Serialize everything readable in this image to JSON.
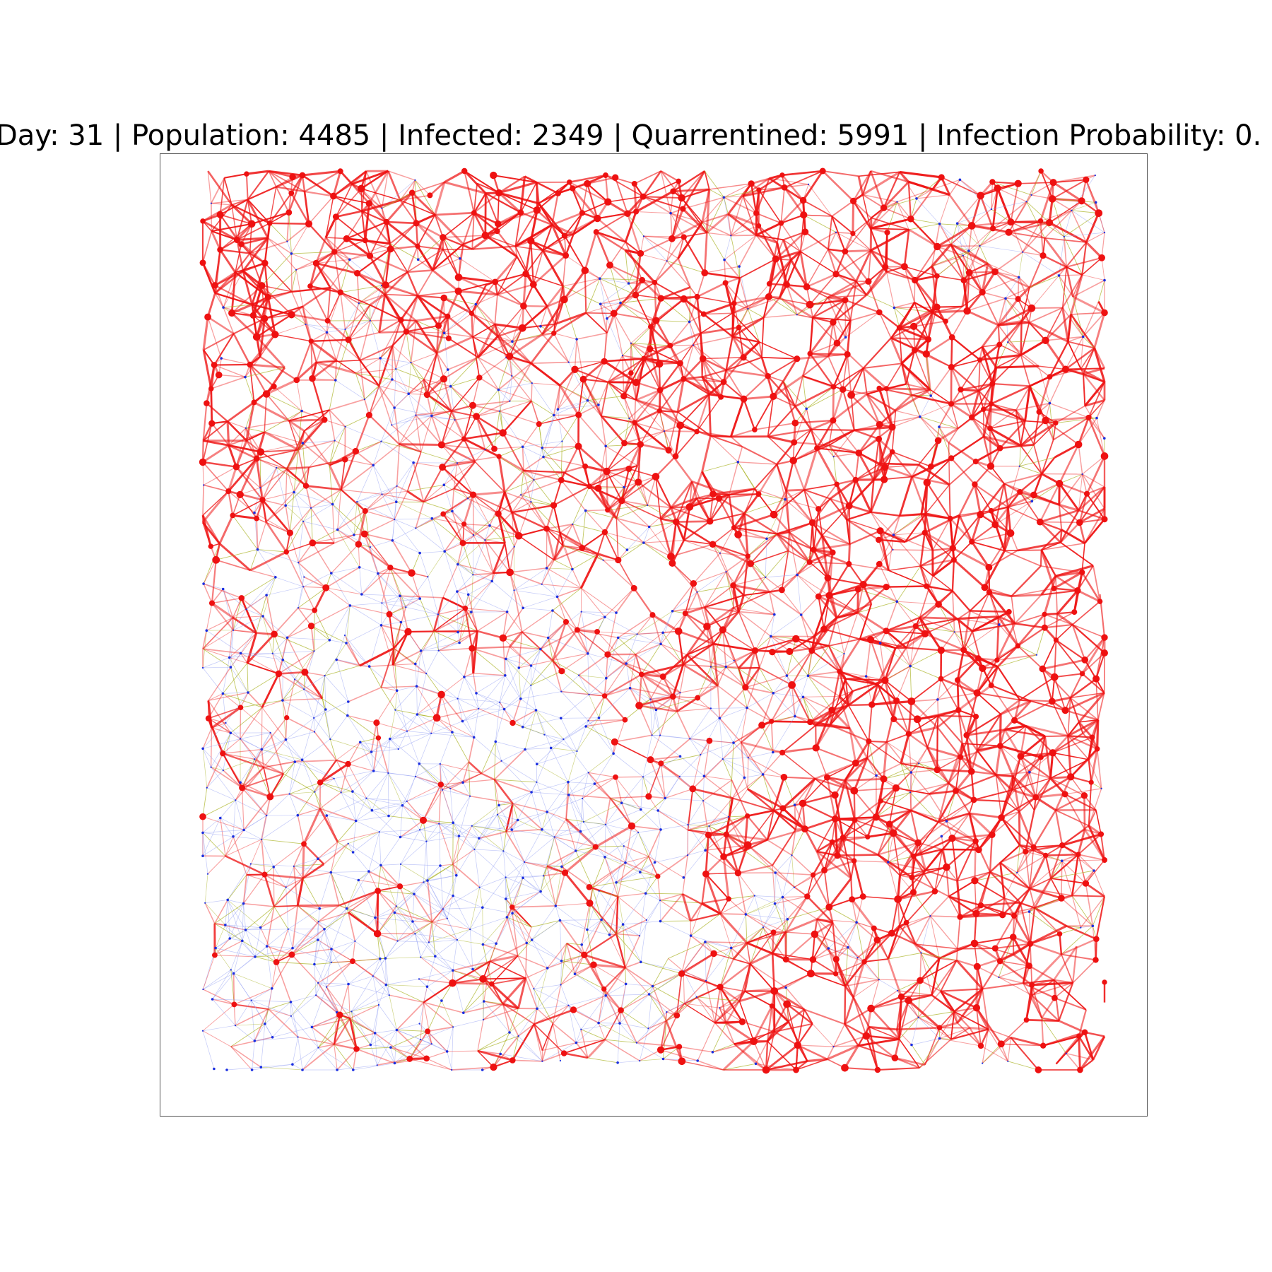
{
  "figure": {
    "title": "Day: 31 | Population: 4485 | Infected: 2349 | Quarrentined: 5991 | Infection Probability: 0."
  },
  "colors": {
    "infected_node": "#ee1111",
    "infected_edge": "#ee1111",
    "healthy_node": "#1a2ee0",
    "healthy_edge": "#8f9cf2",
    "mixed_edge": "#a8b020",
    "frame": "#555555",
    "background": "#ffffff"
  },
  "chart_data": {
    "type": "network",
    "legend": "none",
    "grid": false,
    "axes_ticks": false,
    "node_states": [
      "infected",
      "healthy"
    ],
    "infected_fraction_by_zone": [
      [
        0.95,
        0.9,
        0.95,
        0.9,
        0.85,
        0.35
      ],
      [
        0.9,
        0.55,
        0.75,
        0.85,
        0.9,
        0.85
      ],
      [
        0.9,
        0.25,
        0.55,
        0.85,
        0.95,
        0.95
      ],
      [
        0.6,
        0.15,
        0.25,
        0.55,
        0.9,
        0.95
      ],
      [
        0.35,
        0.15,
        0.3,
        0.5,
        0.85,
        0.9
      ],
      [
        0.3,
        0.35,
        0.25,
        0.7,
        0.75,
        0.9
      ]
    ]
  }
}
